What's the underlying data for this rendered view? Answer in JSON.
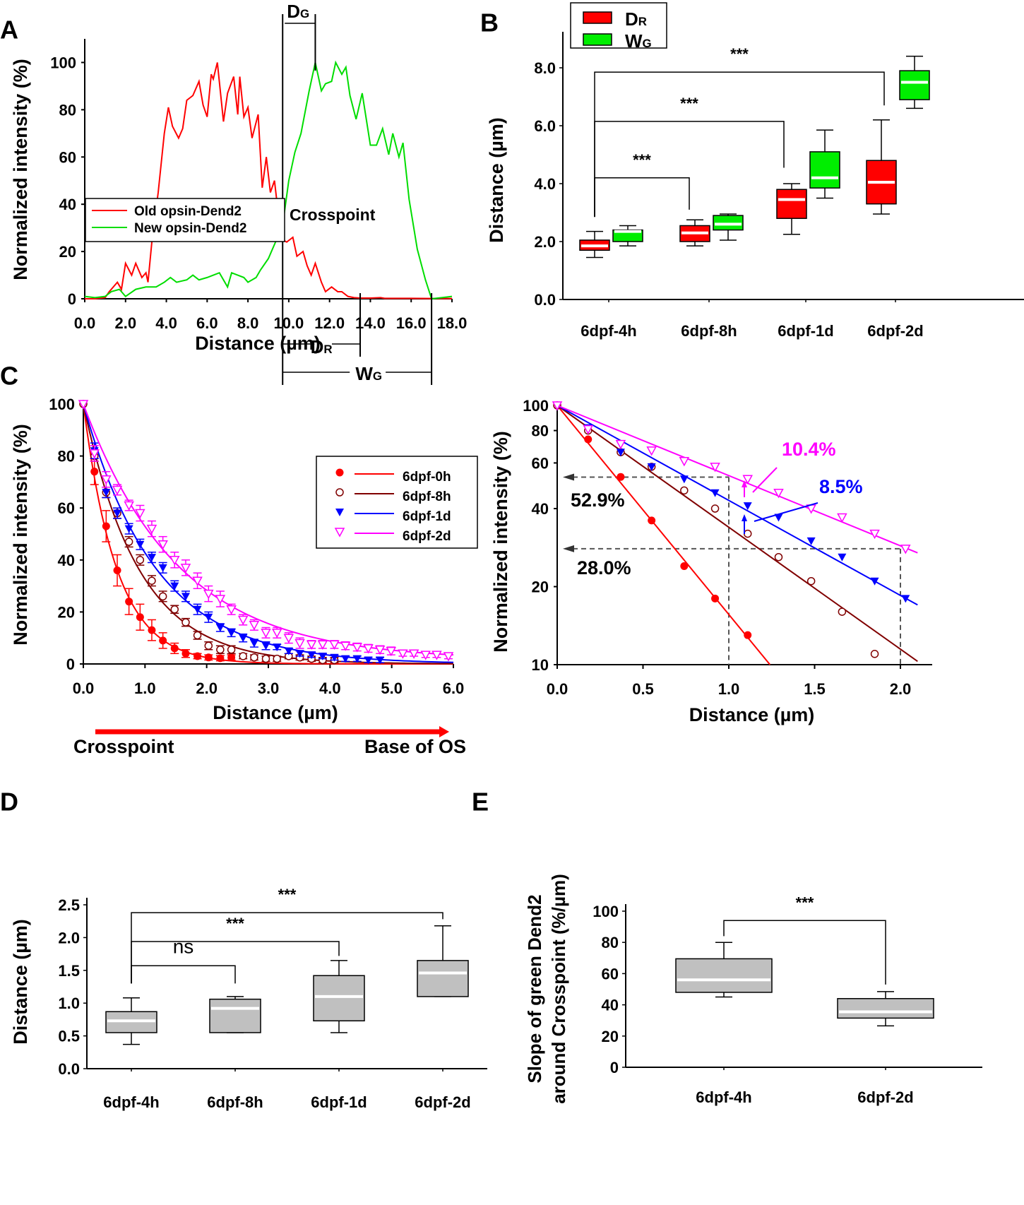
{
  "figure": {
    "panel_letters": [
      "A",
      "B",
      "C",
      "D",
      "E"
    ]
  },
  "chart_data": [
    {
      "panel": "A",
      "type": "line",
      "title": "",
      "xlabel": "Distance (µm)",
      "ylabel": "Normalized intensity (%)",
      "xlim": [
        0,
        18
      ],
      "ylim": [
        0,
        110
      ],
      "xticks": [
        "0.0",
        "2.0",
        "4.0",
        "6.0",
        "8.0",
        "10.0",
        "12.0",
        "14.0",
        "16.0",
        "18.0"
      ],
      "yticks": [
        "0",
        "20",
        "40",
        "60",
        "80",
        "100"
      ],
      "legend": {
        "placement": "center-left",
        "entries": [
          "Old opsin-Dend2",
          "New opsin-Dend2"
        ]
      },
      "annotations": {
        "crosspoint": "Crosspoint",
        "dg": "D",
        "dg_sub": "G",
        "dr": "D",
        "dr_sub": "R",
        "wg": "W",
        "wg_sub": "G"
      },
      "markers_x": {
        "crosspoint": 9.7,
        "green_peak": 11.3,
        "red_end": 13.5,
        "green_end": 17.0
      },
      "series": [
        {
          "name": "Old opsin-Dend2",
          "color": "#ff0000",
          "x": [
            0,
            0.5,
            1.0,
            1.2,
            1.6,
            1.8,
            2.0,
            2.3,
            2.5,
            2.8,
            3.0,
            3.1,
            3.3,
            3.6,
            3.9,
            4.1,
            4.3,
            4.6,
            4.8,
            5.0,
            5.3,
            5.6,
            5.8,
            6.0,
            6.2,
            6.3,
            6.5,
            6.8,
            7.0,
            7.3,
            7.5,
            7.6,
            7.8,
            8.0,
            8.2,
            8.5,
            8.7,
            8.9,
            9.1,
            9.3,
            9.5,
            9.7,
            9.9,
            10.2,
            10.4,
            10.7,
            10.9,
            11.1,
            11.3,
            11.6,
            11.8,
            12.1,
            12.4,
            12.6,
            12.9,
            13.2,
            13.5,
            14.0,
            14.5,
            14.7,
            15,
            16,
            17,
            18
          ],
          "y": [
            0,
            0,
            0.5,
            3,
            7,
            4,
            15,
            10,
            15,
            9,
            11,
            7,
            25,
            45,
            70,
            81,
            73,
            68,
            72,
            84,
            86,
            92,
            82,
            77,
            95,
            93,
            100,
            75,
            87,
            94,
            78,
            94,
            77,
            81,
            68,
            78,
            47,
            60,
            45,
            50,
            35,
            25,
            24,
            26,
            18,
            20,
            14,
            10,
            15,
            7,
            3,
            5,
            3,
            3,
            1,
            0.5,
            0.3,
            0.3,
            0.5,
            0.2,
            0.2,
            0.2,
            0.1,
            0.1
          ]
        },
        {
          "name": "New opsin-Dend2",
          "color": "#00dd00",
          "x": [
            0,
            0.5,
            1.0,
            1.3,
            1.7,
            2.0,
            2.5,
            3.0,
            3.5,
            3.9,
            4.2,
            4.5,
            5.0,
            5.3,
            5.6,
            6.0,
            6.3,
            6.6,
            7.0,
            7.2,
            7.5,
            7.8,
            8.0,
            8.4,
            8.6,
            9.0,
            9.4,
            9.7,
            10.0,
            10.3,
            10.6,
            11.0,
            11.3,
            11.6,
            11.8,
            12.1,
            12.3,
            12.6,
            12.8,
            13.0,
            13.3,
            13.6,
            14.0,
            14.3,
            14.6,
            14.9,
            15.1,
            15.4,
            15.6,
            15.9,
            16.3,
            16.7,
            17.0,
            17.5,
            18.0
          ],
          "y": [
            1,
            0.5,
            1,
            3,
            4,
            1,
            4,
            5,
            5,
            7,
            9,
            7,
            8,
            10,
            8,
            9,
            10,
            11,
            5,
            11,
            10,
            9,
            7,
            9,
            12,
            17,
            25,
            31,
            50,
            62,
            70,
            88,
            100,
            88,
            91,
            92,
            100,
            95,
            98,
            86,
            76,
            87,
            65,
            65,
            72,
            61,
            70,
            60,
            66,
            42,
            21,
            8,
            0,
            0.5,
            1
          ]
        }
      ]
    },
    {
      "panel": "B",
      "type": "box",
      "title": "",
      "xlabel": "",
      "ylabel": "Distance (µm)",
      "ylim": [
        0,
        9
      ],
      "yticks": [
        "0.0",
        "2.0",
        "4.0",
        "6.0",
        "8.0"
      ],
      "categories": [
        "6dpf-4h",
        "6dpf-8h",
        "6dpf-1d",
        "6dpf-2d"
      ],
      "legend": {
        "placement": "top-left",
        "entries": [
          {
            "label": "D",
            "sub": "R",
            "color": "#ff0000"
          },
          {
            "label": "W",
            "sub": "G",
            "color": "#00ee00"
          }
        ]
      },
      "series": [
        {
          "name": "DR",
          "color": "#ff0000",
          "boxes": [
            {
              "min": 1.45,
              "q1": 1.7,
              "median": 1.85,
              "q3": 2.05,
              "max": 2.35
            },
            {
              "min": 1.85,
              "q1": 2.0,
              "median": 2.3,
              "q3": 2.55,
              "max": 2.75
            },
            {
              "min": 2.25,
              "q1": 2.8,
              "median": 3.45,
              "q3": 3.8,
              "max": 4.0
            },
            {
              "min": 2.95,
              "q1": 3.3,
              "median": 4.05,
              "q3": 4.8,
              "max": 6.2
            }
          ]
        },
        {
          "name": "WG",
          "color": "#00ee00",
          "boxes": [
            {
              "min": 1.85,
              "q1": 2.0,
              "median": 2.35,
              "q3": 2.4,
              "max": 2.55
            },
            {
              "min": 2.05,
              "q1": 2.4,
              "median": 2.6,
              "q3": 2.9,
              "max": 2.95
            },
            {
              "min": 3.5,
              "q1": 3.85,
              "median": 4.2,
              "q3": 5.1,
              "max": 5.85
            },
            {
              "min": 6.6,
              "q1": 6.9,
              "median": 7.5,
              "q3": 7.9,
              "max": 8.4
            }
          ]
        }
      ],
      "significance": [
        {
          "from": 0,
          "to": 1,
          "label": "***",
          "y": 4.2
        },
        {
          "from": 0,
          "to": 2,
          "label": "***",
          "y": 6.15
        },
        {
          "from": 0,
          "to": 3,
          "label": "***",
          "y": 7.85
        }
      ]
    },
    {
      "panel": "C-left",
      "type": "line",
      "title": "",
      "xlabel": "Distance (µm)",
      "ylabel": "Normalized intensity (%)",
      "xlim": [
        0,
        6
      ],
      "ylim": [
        0,
        100
      ],
      "xticks": [
        "0.0",
        "1.0",
        "2.0",
        "3.0",
        "4.0",
        "5.0",
        "6.0"
      ],
      "yticks": [
        "0",
        "20",
        "40",
        "60",
        "80",
        "100"
      ],
      "legend": {
        "placement": "top-right",
        "entries": [
          "6dpf-0h",
          "6dpf-8h",
          "6dpf-1d",
          "6dpf-2d"
        ]
      },
      "arrow": {
        "from_label": "Crosspoint",
        "to_label": "Base of OS",
        "color": "#ff0000"
      },
      "x": [
        0,
        0.18,
        0.37,
        0.55,
        0.74,
        0.92,
        1.11,
        1.29,
        1.48,
        1.66,
        1.85,
        2.03,
        2.22,
        2.4,
        2.59,
        2.77,
        2.96,
        3.14,
        3.33,
        3.51,
        3.7,
        3.88,
        4.07,
        4.25,
        4.44,
        4.62,
        4.81,
        4.99,
        5.18,
        5.36,
        5.55,
        5.73,
        5.92
      ],
      "series": [
        {
          "name": "6dpf-0h",
          "color": "#ff0000",
          "marker": "filled-circle",
          "k": 1.85,
          "y": [
            100,
            74,
            53,
            36,
            24,
            18,
            13,
            9,
            6,
            4,
            3,
            2.5,
            2.2,
            2.5
          ],
          "err": [
            0,
            5,
            6,
            6,
            5,
            5,
            4,
            3,
            2,
            1.5,
            1,
            1,
            1,
            1
          ]
        },
        {
          "name": "6dpf-8h",
          "color": "#800000",
          "marker": "open-circle",
          "k": 1.12,
          "y": [
            100,
            80,
            66,
            58,
            47,
            40,
            32,
            26,
            21,
            16,
            11,
            7,
            5.5,
            5.5,
            3,
            2.5,
            2,
            2,
            3,
            2.5,
            2,
            1.5,
            1.5
          ],
          "err": [
            0,
            2,
            2,
            2,
            2,
            2,
            2,
            2,
            1.5,
            1.5,
            1.5,
            1.5,
            1.5,
            1.5,
            1,
            1,
            1,
            1,
            1,
            1,
            1,
            1,
            1
          ]
        },
        {
          "name": "6dpf-1d",
          "color": "#0000ff",
          "marker": "filled-triangle-down",
          "k": 0.85,
          "y": [
            100,
            82,
            66,
            58,
            52,
            46,
            41,
            37,
            30,
            26,
            21,
            18,
            14,
            12,
            10,
            8,
            7,
            6.5,
            5,
            4,
            3.5,
            3,
            2.5,
            2,
            2,
            1.5,
            1.5
          ],
          "err": [
            0,
            3,
            2,
            2,
            2,
            2,
            2,
            2,
            2,
            2,
            2,
            2,
            1.5,
            1.5,
            1.5,
            1.5,
            1.5,
            1,
            1,
            1,
            1,
            1,
            1,
            1,
            1,
            1,
            1
          ]
        },
        {
          "name": "6dpf-2d",
          "color": "#ff00ff",
          "marker": "open-triangle-down",
          "k": 0.65,
          "c": 1.5,
          "y": [
            100,
            81,
            71,
            67,
            61,
            58,
            52,
            46,
            40,
            37,
            32,
            27,
            25,
            21,
            17,
            15,
            12,
            12,
            10,
            8,
            7.5,
            7.5,
            7.5,
            7,
            6.5,
            6,
            5.5,
            5,
            4,
            4,
            3.5,
            3.5,
            3
          ],
          "err": [
            0,
            3,
            3,
            2,
            2,
            3,
            3,
            3,
            3,
            3,
            3,
            3,
            3,
            2,
            2,
            2,
            2,
            2,
            2,
            2,
            1.5,
            1.5,
            1.5,
            1.5,
            1.5,
            1.5,
            1.5,
            1.5,
            1,
            1,
            1,
            1,
            1
          ]
        }
      ]
    },
    {
      "panel": "C-right",
      "type": "scatter",
      "title": "",
      "xlabel": "Distance (µm)",
      "ylabel": "Normalized intensity (%)",
      "yscale": "log",
      "xlim": [
        0,
        2.1
      ],
      "ylim": [
        10,
        100
      ],
      "xticks": [
        "0.0",
        "0.5",
        "1.0",
        "1.5",
        "2.0"
      ],
      "yticks": [
        "10",
        "20",
        "40",
        "60",
        "80",
        "100"
      ],
      "annotations": [
        {
          "text": "52.9%",
          "color": "#000000",
          "y_value": 52.9
        },
        {
          "text": "28.0%",
          "color": "#000000",
          "y_value": 28.0
        },
        {
          "text": "10.4%",
          "color": "#ff00ff"
        },
        {
          "text": "8.5%",
          "color": "#0000ff"
        }
      ],
      "x": [
        0,
        0.18,
        0.37,
        0.55,
        0.74,
        0.92,
        1.11,
        1.29,
        1.48,
        1.66,
        1.85,
        2.03
      ],
      "series": [
        {
          "name": "6dpf-0h",
          "color": "#ff0000",
          "marker": "filled-circle",
          "fit_end": [
            1.24,
            10
          ],
          "y": [
            100,
            74,
            53,
            36,
            24,
            18,
            13
          ]
        },
        {
          "name": "6dpf-8h",
          "color": "#800000",
          "marker": "open-circle",
          "fit_end": [
            2.1,
            10.3
          ],
          "y": [
            100,
            80,
            66,
            58,
            47,
            40,
            32,
            26,
            21,
            16,
            11
          ]
        },
        {
          "name": "6dpf-1d",
          "color": "#0000ff",
          "marker": "filled-triangle-down",
          "fit_end": [
            2.1,
            17
          ],
          "y": [
            100,
            82,
            66,
            58,
            52,
            46,
            41,
            37,
            30,
            26,
            21,
            18
          ]
        },
        {
          "name": "6dpf-2d",
          "color": "#ff00ff",
          "marker": "open-triangle-down",
          "fit_end": [
            2.1,
            27
          ],
          "y": [
            100,
            81,
            71,
            67,
            61,
            58,
            52,
            46,
            40,
            37,
            32,
            28
          ]
        }
      ]
    },
    {
      "panel": "D",
      "type": "box",
      "title": "",
      "ylabel": "Distance (µm)",
      "ylim": [
        0,
        2.5
      ],
      "yticks": [
        "0.0",
        "0.5",
        "1.0",
        "1.5",
        "2.0",
        "2.5"
      ],
      "categories": [
        "6dpf-4h",
        "6dpf-8h",
        "6dpf-1d",
        "6dpf-2d"
      ],
      "color": "#c0c0c0",
      "boxes": [
        {
          "min": 0.37,
          "q1": 0.55,
          "median": 0.73,
          "q3": 0.87,
          "max": 1.08
        },
        {
          "min": 0.55,
          "q1": 0.55,
          "median": 0.92,
          "q3": 1.06,
          "max": 1.1
        },
        {
          "min": 0.55,
          "q1": 0.73,
          "median": 1.1,
          "q3": 1.42,
          "max": 1.65
        },
        {
          "min": 1.1,
          "q1": 1.1,
          "median": 1.46,
          "q3": 1.65,
          "max": 2.18
        }
      ],
      "significance": [
        {
          "from": 0,
          "to": 1,
          "label": "ns",
          "y": 1.57
        },
        {
          "from": 0,
          "to": 2,
          "label": "***",
          "y": 1.94
        },
        {
          "from": 0,
          "to": 3,
          "label": "***",
          "y": 2.38
        }
      ]
    },
    {
      "panel": "E",
      "type": "box",
      "title": "",
      "ylabel_line1": "Slope of green Dend2",
      "ylabel_line2": "around Crosspoint (%/µm)",
      "ylim": [
        0,
        100
      ],
      "yticks": [
        "0",
        "20",
        "40",
        "60",
        "80",
        "100"
      ],
      "categories": [
        "6dpf-4h",
        "6dpf-2d"
      ],
      "color": "#c0c0c0",
      "boxes": [
        {
          "min": 45,
          "q1": 48,
          "median": 56,
          "q3": 69.5,
          "max": 80
        },
        {
          "min": 26.5,
          "q1": 31.5,
          "median": 35.5,
          "q3": 44,
          "max": 48.5
        }
      ],
      "significance": [
        {
          "from": 0,
          "to": 1,
          "label": "***",
          "y": 94
        }
      ]
    }
  ]
}
